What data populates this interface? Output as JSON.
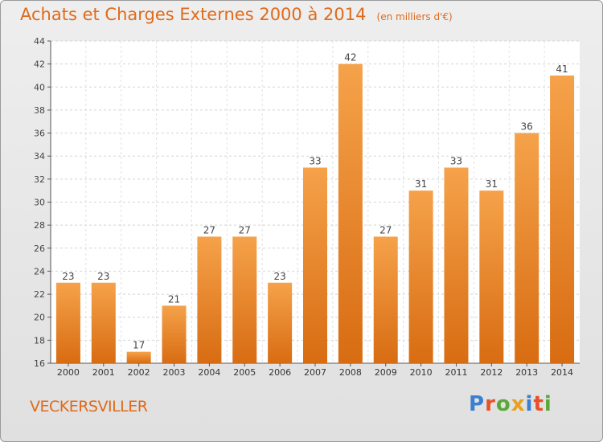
{
  "header": {
    "title": "Achats et Charges Externes 2000 à 2014",
    "subtitle": "(en milliers d'€)"
  },
  "footer": {
    "commune": "VECKERSVILLER",
    "brand": "Proxiti",
    "brand_colors": [
      "#3a7fd0",
      "#e8502a",
      "#5aa83a",
      "#e8a020",
      "#3a7fd0",
      "#e8502a",
      "#5aa83a"
    ]
  },
  "colors": {
    "bar_light": "#f5a24a",
    "bar_dark": "#d86c12",
    "accent": "#e06a1a"
  },
  "chart_data": {
    "type": "bar",
    "title": "Achats et Charges Externes 2000 à 2014",
    "subtitle": "(en milliers d'€)",
    "categories": [
      "2000",
      "2001",
      "2002",
      "2003",
      "2004",
      "2005",
      "2006",
      "2007",
      "2008",
      "2009",
      "2010",
      "2011",
      "2012",
      "2013",
      "2014"
    ],
    "values": [
      23,
      23,
      17,
      21,
      27,
      27,
      23,
      33,
      42,
      27,
      31,
      33,
      31,
      36,
      41
    ],
    "ylim": [
      16,
      44
    ],
    "yticks": [
      16,
      18,
      20,
      22,
      24,
      26,
      28,
      30,
      32,
      34,
      36,
      38,
      40,
      42,
      44
    ],
    "grid": true,
    "data_labels": true
  }
}
